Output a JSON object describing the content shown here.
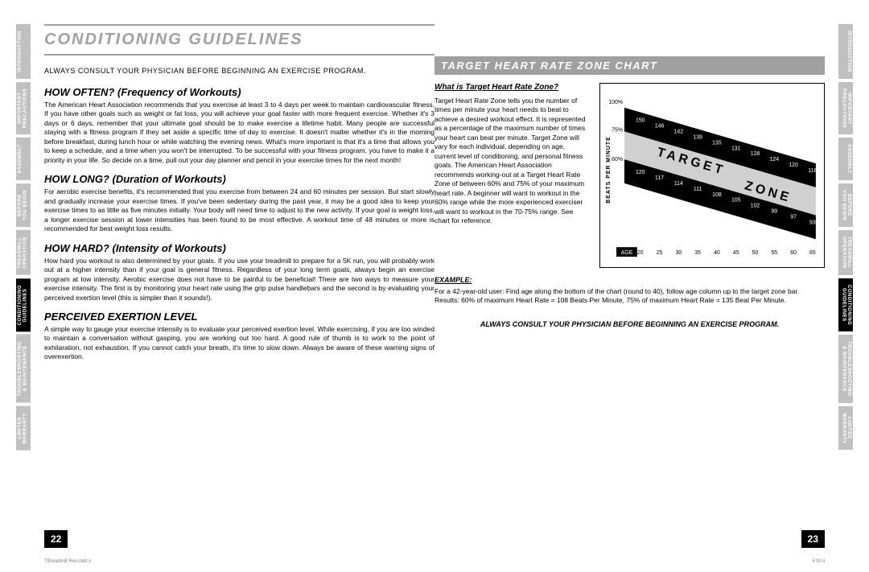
{
  "tabs": [
    {
      "label": "INTRODUCTION",
      "active": false
    },
    {
      "label": "IMPORTANT\nPRECAUTIONS",
      "active": false
    },
    {
      "label": "ASSEMBLY",
      "active": false
    },
    {
      "label": "BEFORE\nYOU BEGIN",
      "active": false
    },
    {
      "label": "TREADMILL\nOPERATION",
      "active": false
    },
    {
      "label": "CONDITIONING\nGUIDELINES",
      "active": true
    },
    {
      "label": "TROUBLESHOOTING\n& MAINTENANCE",
      "active": false
    },
    {
      "label": "LIMITED\nWARRANTY",
      "active": false
    }
  ],
  "left": {
    "title": "CONDITIONING GUIDELINES",
    "warning": "ALWAYS CONSULT YOUR PHYSICIAN BEFORE BEGINNING AN EXERCISE PROGRAM.",
    "sections": [
      {
        "heading": "HOW OFTEN? (Frequency of Workouts)",
        "body": "The American Heart Association recommends that you exercise at least 3 to 4 days per week to maintain cardiovascular fitness. If you have other goals such as weight or fat loss, you will achieve your goal faster with more frequent exercise. Whether it's 3 days or 6 days, remember that your ultimate goal should be to make exercise a lifetime habit. Many people are successful staying with a fitness program if they set aside a specific time of day to exercise. It doesn't matter whether it's in the morning before breakfast, during lunch hour or while watching the evening news. What's more important is that it's a time that allows you to keep a schedule, and a time when you won't be interrupted. To be successful with your fitness program, you have to make it a priority in your life. So decide on a time, pull out your day planner and pencil in your exercise times for the next month!"
      },
      {
        "heading": "HOW LONG? (Duration of Workouts)",
        "body": "For aerobic exercise benefits, it's recommended that you exercise from between 24 and 60 minutes per session. But start slowly and gradually increase your exercise times. If you've been sedentary during the past year, it may be a good idea to keep your exercise times to as little as five minutes initially. Your body will need time to adjust to the new activity. If your goal is weight loss, a longer exercise session at lower intensities has been found to be most effective. A workout time of 48 minutes or more is recommended for best weight loss results."
      },
      {
        "heading": "HOW HARD? (Intensity of Workouts)",
        "body": "How hard you workout is also determined by your goals. If you use your treadmill to prepare for a 5K run, you will probably work out at a higher intensity than if your goal is general fitness. Regardless of your long term goals, always begin an exercise program at low intensity. Aerobic exercise does not have to be painful to be beneficial! There are two ways to measure your exercise intensity. The first is by monitoring your heart rate using the grip pulse handlebars and the second is by evaluating your perceived exertion level (this is simpler than it sounds!)."
      },
      {
        "heading": "PERCEIVED EXERTION LEVEL",
        "body": "A simple way to gauge your exercise intensity is to evaluate your perceived exertion level. While exercising, if you are too winded to maintain a conversation without gasping, you are working out too hard. A good rule of thumb is to work to the point of exhilaration, not exhaustion. If you cannot catch your breath, it's time to slow down. Always be aware of these warning signs of overexertion."
      }
    ],
    "page_num": "22"
  },
  "right": {
    "section_title": "TARGET HEART RATE ZONE CHART",
    "sub_heading": "What is Target Heart Rate Zone?",
    "body1": "Target Heart Rate Zone tells you the number of times per minute your heart needs to beat to achieve a desired workout effect. It is represented as a percentage of the maximum number of times your heart can beat per minute. Target Zone will vary for each individual, depending on age, current level of conditioning, and personal fitness goals. The American Heart Association recommends working-out at a Target Heart Rate Zone of between 60% and 75% of your maximum heart rate. A beginner will want to workout in the 60% range while the more experienced exerciser will want to workout in the 70-75% range. See chart for reference.",
    "example_label": "EXAMPLE:",
    "example_body": "For a 42-year-old user: Find age along the bottom of the chart (round to 40), follow age column up to the target zone bar. Results: 60% of maximum Heart Rate = 108 Beats Per Minute, 75% of maximum Heart Rate = 135 Beat Per Minute.",
    "final_warning": "ALWAYS CONSULT YOUR PHYSICIAN BEFORE BEGINNING AN EXERCISE PROGRAM.",
    "page_num": "23",
    "chart": {
      "y_label": "BEATS PER MINUTE",
      "x_label": "AGE",
      "zone_label_1": "TARGET",
      "zone_label_2": "ZONE",
      "percent_labels": [
        "100%",
        "75%",
        "60%"
      ],
      "ages": [
        "20",
        "25",
        "30",
        "35",
        "40",
        "45",
        "50",
        "55",
        "60",
        "65"
      ],
      "row_100": [
        "150",
        "146",
        "142",
        "139",
        "135",
        "131",
        "128",
        "124",
        "120",
        "116"
      ],
      "row_75": [
        "120",
        "117",
        "114",
        "111",
        "108",
        "105",
        "102",
        "99",
        "97",
        "93"
      ],
      "bar_fill": "#000000",
      "text_fill": "#ffffff",
      "bg": "#ffffff"
    }
  },
  "footer": {
    "left": "TBreadmill Rev.indd  ii",
    "right": "ii  00 ii"
  }
}
